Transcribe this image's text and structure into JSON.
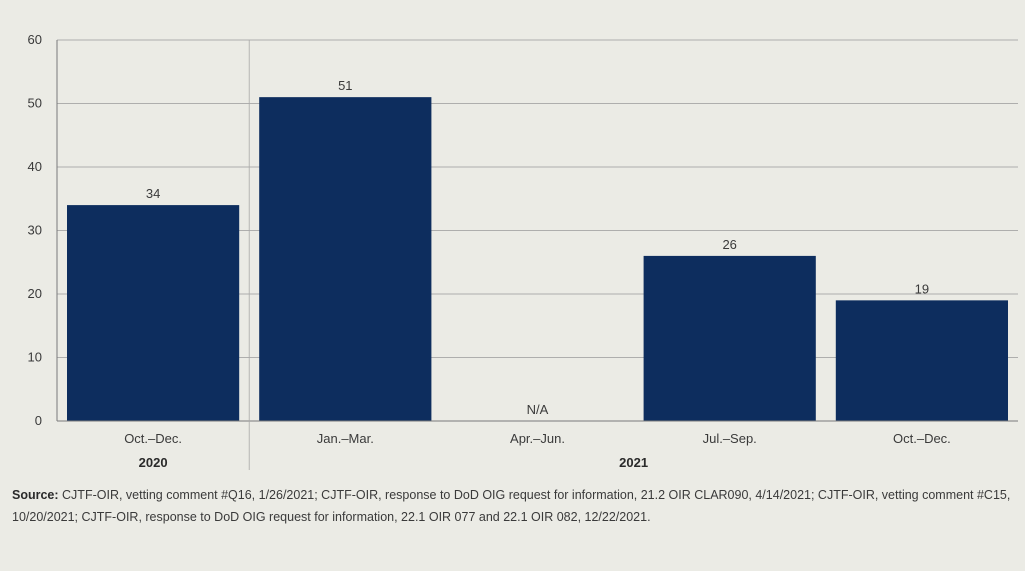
{
  "chart_data": {
    "type": "bar",
    "categories": [
      "Oct.–Dec.",
      "Jan.–Mar.",
      "Apr.–Jun.",
      "Jul.–Sep.",
      "Oct.–Dec."
    ],
    "values": [
      34,
      51,
      null,
      26,
      19
    ],
    "data_labels": [
      "34",
      "51",
      "N/A",
      "26",
      "19"
    ],
    "groups": [
      {
        "label": "2020",
        "categories": [
          0
        ]
      },
      {
        "label": "2021",
        "categories": [
          1,
          2,
          3,
          4
        ]
      }
    ],
    "y_ticks": [
      0,
      10,
      20,
      30,
      40,
      50,
      60
    ],
    "ylim": [
      0,
      60
    ],
    "grid": true,
    "bar_color": "#0d2d5e",
    "title": "",
    "xlabel": "",
    "ylabel": ""
  },
  "source": {
    "label": "Source:",
    "text": "CJTF-OIR, vetting comment #Q16, 1/26/2021; CJTF-OIR, response to DoD OIG request for information, 21.2 OIR CLAR090, 4/14/2021; CJTF-OIR, vetting comment #C15, 10/20/2021; CJTF-OIR, response to DoD OIG request for information, 22.1 OIR 077 and 22.1 OIR 082, 12/22/2021."
  }
}
